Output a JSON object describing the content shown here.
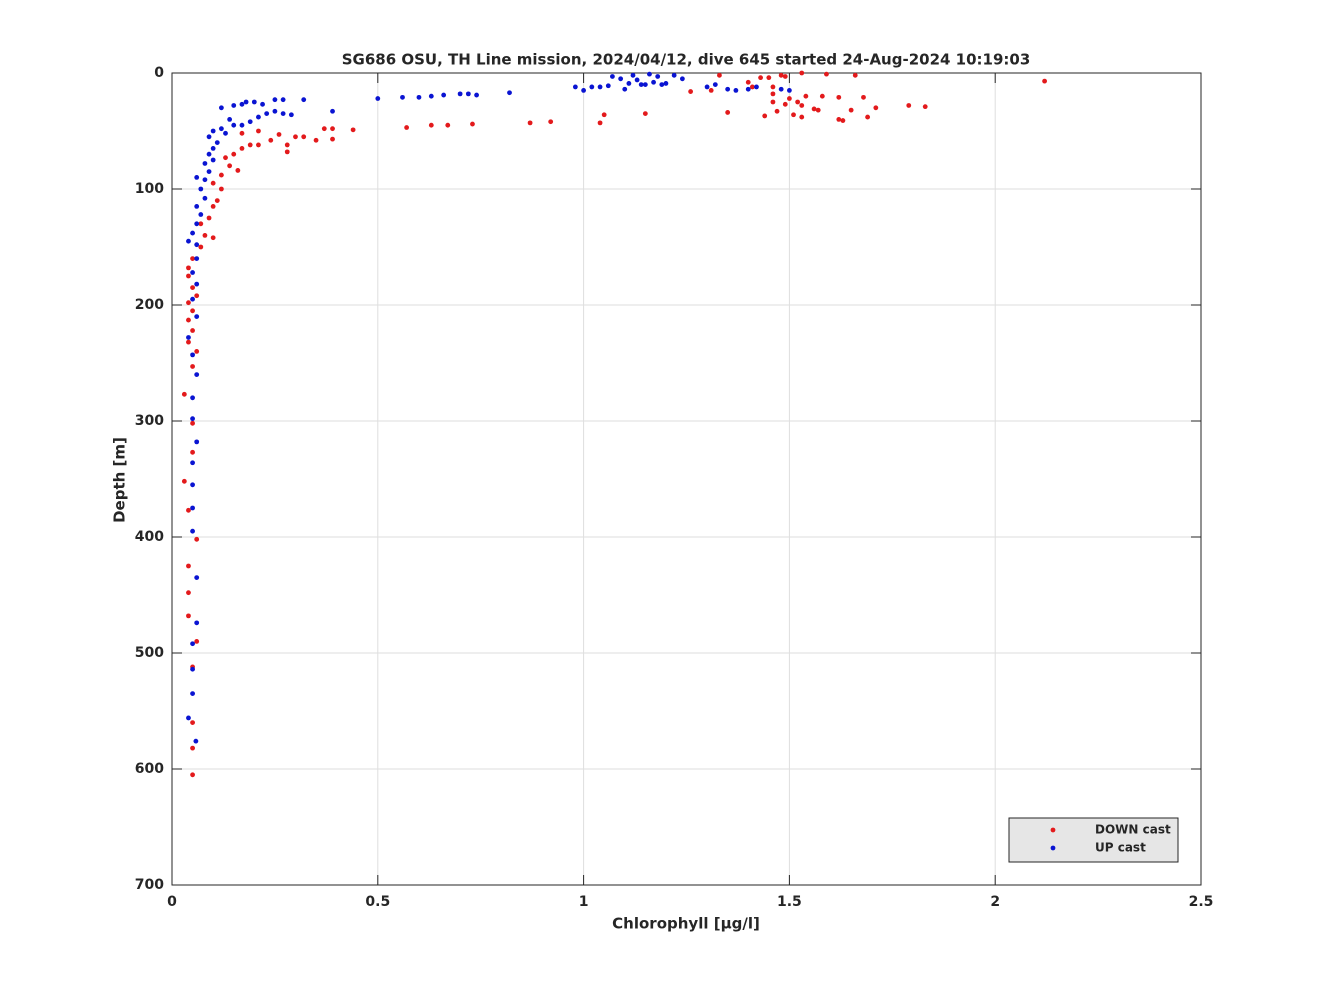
{
  "chart_data": {
    "type": "scatter",
    "title": "SG686 OSU, TH Line mission, 2024/04/12, dive 645 started 24-Aug-2024 10:19:03",
    "xlabel": "Chlorophyll [μg/l]",
    "ylabel": "Depth [m]",
    "xlim": [
      0,
      2.5
    ],
    "xticks": [
      0,
      0.5,
      1,
      1.5,
      2,
      2.5
    ],
    "ylim": [
      0,
      700
    ],
    "yticks": [
      0,
      100,
      200,
      300,
      400,
      500,
      600,
      700
    ],
    "y_reversed": true,
    "grid": true,
    "legend": "lower right",
    "series": [
      {
        "name": "DOWN cast",
        "color": "#e31a1c",
        "x": [
          0.05,
          0.05,
          0.05,
          0.05,
          0.06,
          0.04,
          0.04,
          0.04,
          0.06,
          0.04,
          0.03,
          0.05,
          0.05,
          0.03,
          0.05,
          0.06,
          0.04,
          0.05,
          0.04,
          0.05,
          0.04,
          0.06,
          0.05,
          0.04,
          0.04,
          0.05,
          0.07,
          0.08,
          0.1,
          0.07,
          0.09,
          0.1,
          0.11,
          0.12,
          0.1,
          0.12,
          0.14,
          0.16,
          0.13,
          0.15,
          0.17,
          0.19,
          0.21,
          0.24,
          0.28,
          0.28,
          0.3,
          0.32,
          0.35,
          0.39,
          0.37,
          0.39,
          0.44,
          0.21,
          0.26,
          0.17,
          0.57,
          0.63,
          0.67,
          0.73,
          0.87,
          0.92,
          1.04,
          1.05,
          1.15,
          1.26,
          1.31,
          1.33,
          1.35,
          1.4,
          1.41,
          1.43,
          1.44,
          1.45,
          1.46,
          1.46,
          1.47,
          1.48,
          1.49,
          1.5,
          1.52,
          1.53,
          1.53,
          1.54,
          1.51,
          1.56,
          1.57,
          1.58,
          1.59,
          1.62,
          1.62,
          1.63,
          1.65,
          1.66,
          1.68,
          1.69,
          1.71,
          1.79,
          1.83,
          2.12,
          1.46,
          1.53,
          1.49
        ],
        "values": [
          605,
          582,
          560,
          512,
          490,
          468,
          448,
          425,
          402,
          377,
          352,
          327,
          302,
          277,
          253,
          240,
          232,
          222,
          213,
          205,
          198,
          192,
          185,
          175,
          168,
          160,
          150,
          140,
          142,
          130,
          125,
          115,
          110,
          100,
          95,
          88,
          80,
          84,
          73,
          70,
          65,
          62,
          62,
          58,
          62,
          68,
          55,
          55,
          58,
          57,
          48,
          48,
          49,
          50,
          53,
          52,
          47,
          45,
          45,
          44,
          43,
          42,
          43,
          36,
          35,
          16,
          15,
          2,
          34,
          8,
          12,
          4,
          37,
          4,
          18,
          25,
          33,
          2,
          27,
          22,
          25,
          38,
          28,
          20,
          36,
          31,
          32,
          20,
          1,
          21,
          40,
          41,
          32,
          2,
          21,
          38,
          30,
          28,
          29,
          7,
          12,
          0,
          3
        ]
      },
      {
        "name": "UP cast",
        "color": "#0a14d2",
        "x": [
          0.058,
          0.04,
          0.05,
          0.05,
          0.05,
          0.06,
          0.06,
          0.05,
          0.05,
          0.05,
          0.05,
          0.06,
          0.05,
          0.05,
          0.06,
          0.05,
          0.04,
          0.06,
          0.05,
          0.06,
          0.05,
          0.06,
          0.04,
          0.06,
          0.05,
          0.06,
          0.07,
          0.06,
          0.08,
          0.07,
          0.08,
          0.06,
          0.09,
          0.08,
          0.1,
          0.09,
          0.1,
          0.11,
          0.09,
          0.1,
          0.12,
          0.13,
          0.12,
          0.15,
          0.17,
          0.18,
          0.2,
          0.22,
          0.25,
          0.27,
          0.32,
          0.14,
          0.15,
          0.17,
          0.19,
          0.21,
          0.23,
          0.25,
          0.27,
          0.29,
          0.39,
          0.5,
          0.56,
          0.6,
          0.63,
          0.66,
          0.7,
          0.72,
          0.74,
          0.82,
          0.98,
          1.0,
          1.02,
          1.04,
          1.06,
          1.07,
          1.09,
          1.1,
          1.11,
          1.12,
          1.13,
          1.15,
          1.17,
          1.18,
          1.2,
          1.22,
          1.24,
          1.3,
          1.32,
          1.35,
          1.37,
          1.4,
          1.42,
          1.48,
          1.5,
          1.19,
          1.14,
          1.16
        ],
        "values": [
          576,
          556,
          535,
          514,
          492,
          474,
          435,
          395,
          375,
          355,
          336,
          318,
          298,
          280,
          260,
          243,
          228,
          210,
          195,
          182,
          172,
          160,
          145,
          148,
          138,
          130,
          122,
          115,
          108,
          100,
          92,
          90,
          85,
          78,
          75,
          70,
          65,
          60,
          55,
          50,
          48,
          52,
          30,
          28,
          27,
          25,
          25,
          27,
          23,
          23,
          23,
          40,
          45,
          45,
          42,
          38,
          35,
          33,
          35,
          36,
          33,
          22,
          21,
          21,
          20,
          19,
          18,
          18,
          19,
          17,
          12,
          15,
          12,
          12,
          11,
          3,
          5,
          14,
          9,
          2,
          6,
          10,
          8,
          3,
          9,
          2,
          5,
          12,
          10,
          14,
          15,
          14,
          12,
          14,
          15,
          10,
          10,
          1
        ]
      }
    ]
  }
}
